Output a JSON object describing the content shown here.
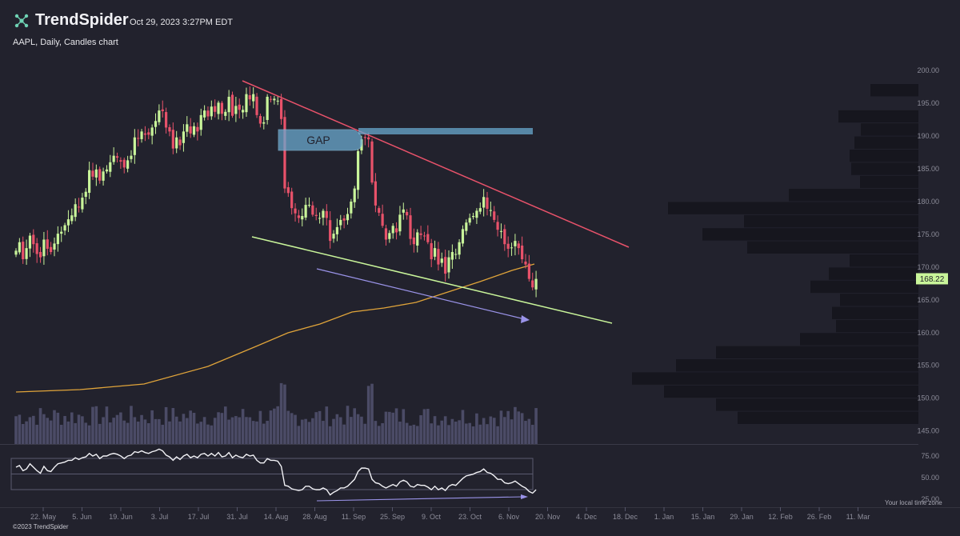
{
  "header": {
    "brand": "TrendSpider",
    "timestamp": "Oct 29, 2023 3:27PM EDT",
    "symbol_label": "AAPL, Daily, Candles chart"
  },
  "footer": {
    "copyright": "©2023 TrendSpider",
    "timezone_note": "Your local time zone"
  },
  "colors": {
    "background": "#22222d",
    "up": "#c9f59a",
    "down": "#e8526a",
    "resistance": "#e8526a",
    "support": "#c9f59a",
    "ma": "#e0a43a",
    "divergence": "#9a93e8",
    "gap": "#6aa9cf",
    "volume": "#5a5a7a",
    "profile": "#16161e",
    "last_price": "#c9f59a"
  },
  "chart_data": {
    "type": "candlestick",
    "symbol": "AAPL",
    "interval": "Daily",
    "ylim": [
      143,
      201
    ],
    "yticks": [
      145,
      150,
      155,
      160,
      165,
      170,
      175,
      180,
      185,
      190,
      195,
      200
    ],
    "ytick_labels": [
      "145.00",
      "150.00",
      "155.00",
      "160.00",
      "165.00",
      "170.00",
      "175.00",
      "180.00",
      "185.00",
      "190.00",
      "195.00",
      "200.00"
    ],
    "x_tick_labels": [
      "22. May",
      "5. Jun",
      "19. Jun",
      "3. Jul",
      "17. Jul",
      "31. Jul",
      "14. Aug",
      "28. Aug",
      "11. Sep",
      "25. Sep",
      "9. Oct",
      "23. Oct",
      "6. Nov",
      "20. Nov",
      "4. Dec",
      "18. Dec",
      "1. Jan",
      "15. Jan",
      "29. Jan",
      "12. Feb",
      "26. Feb",
      "11. Mar"
    ],
    "last_price": "168.22",
    "closes": [
      172.5,
      173.8,
      171.2,
      172.9,
      174.8,
      173.5,
      172.0,
      171.5,
      174.2,
      172.8,
      172.3,
      173.6,
      175.1,
      175.4,
      176.4,
      177.3,
      177.9,
      179.6,
      179.2,
      180.6,
      181.5,
      184.8,
      183.8,
      184.9,
      183.2,
      184.6,
      184.9,
      186.0,
      187.0,
      186.7,
      186.1,
      185.2,
      186.3,
      187.0,
      189.8,
      189.6,
      190.7,
      190.2,
      190.2,
      191.3,
      192.3,
      193.9,
      193.8,
      191.3,
      190.7,
      188.1,
      189.8,
      188.6,
      190.7,
      191.8,
      190.4,
      191.5,
      190.7,
      193.2,
      193.9,
      193.0,
      194.5,
      193.7,
      195.1,
      193.4,
      193.7,
      196.0,
      193.1,
      194.6,
      194.0,
      194.0,
      196.4,
      195.6,
      196.4,
      193.2,
      191.9,
      192.1,
      196.0,
      195.6,
      195.7,
      195.4,
      192.6,
      182.0,
      181.3,
      179.0,
      178.2,
      177.5,
      177.8,
      179.5,
      179.5,
      178.0,
      177.8,
      177.5,
      178.6,
      177.5,
      174.0,
      175.1,
      176.1,
      177.2,
      177.1,
      178.1,
      180.0,
      182.0,
      187.7,
      189.5,
      189.7,
      189.5,
      182.9,
      179.4,
      178.3,
      176.3,
      174.2,
      175.2,
      176.3,
      175.3,
      178.0,
      178.8,
      177.9,
      174.3,
      173.5,
      175.3,
      174.9,
      174.7,
      173.8,
      171.2,
      172.9,
      170.4,
      171.3,
      169.0,
      171.5,
      172.3,
      172.0,
      173.8,
      175.8,
      176.8,
      177.5,
      177.8,
      178.6,
      179.0,
      180.7,
      178.9,
      178.7,
      177.2,
      175.7,
      175.5,
      173.5,
      172.8,
      173.0,
      174.0,
      172.9,
      171.2,
      170.4,
      168.2,
      166.9,
      168.2
    ]
  },
  "drawings": {
    "gap_label": "GAP"
  },
  "oscillator": {
    "yticks": [
      25,
      50,
      75
    ],
    "ytick_labels": [
      "25.00",
      "50.00",
      "75.00"
    ],
    "values": [
      62,
      64,
      58,
      60,
      66,
      62,
      58,
      55,
      63,
      58,
      57,
      62,
      66,
      67,
      68,
      70,
      70,
      73,
      71,
      73,
      74,
      78,
      75,
      77,
      72,
      75,
      75,
      77,
      78,
      77,
      75,
      72,
      75,
      76,
      80,
      79,
      81,
      79,
      78,
      80,
      81,
      83,
      81,
      76,
      74,
      70,
      74,
      71,
      75,
      77,
      73,
      75,
      73,
      77,
      78,
      75,
      78,
      75,
      79,
      74,
      75,
      79,
      73,
      76,
      74,
      73,
      77,
      75,
      76,
      70,
      67,
      67,
      72,
      70,
      70,
      69,
      63,
      41,
      40,
      37,
      36,
      35,
      36,
      40,
      40,
      37,
      36,
      36,
      38,
      36,
      30,
      33,
      35,
      38,
      38,
      40,
      44,
      48,
      57,
      61,
      61,
      60,
      48,
      44,
      43,
      40,
      38,
      40,
      42,
      40,
      45,
      47,
      45,
      40,
      39,
      42,
      41,
      41,
      39,
      36,
      40,
      36,
      38,
      35,
      40,
      42,
      41,
      45,
      49,
      52,
      53,
      54,
      56,
      57,
      60,
      56,
      55,
      52,
      48,
      48,
      44,
      43,
      44,
      46,
      43,
      40,
      38,
      34,
      32,
      36
    ]
  }
}
